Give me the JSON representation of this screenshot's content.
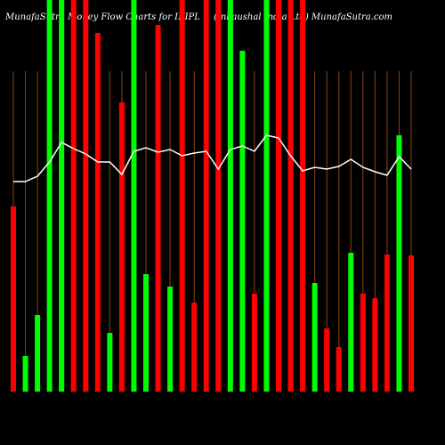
{
  "chart_data": {
    "type": "bar",
    "title": "MunafaSutra Money Flow Charts for IKIPL",
    "subtitle": "(Inkaushal India Ltd) MunafaSutra.com",
    "ylim": [
      0,
      440
    ],
    "values": [
      208,
      40,
      86,
      440,
      440,
      440,
      440,
      403,
      66,
      325,
      440,
      132,
      412,
      118,
      440,
      100,
      440,
      440,
      440,
      383,
      110,
      440,
      440,
      440,
      440,
      122,
      71,
      50,
      156,
      110,
      105,
      154,
      288,
      153
    ],
    "colors": [
      "#ff0000",
      "#00ff00",
      "#00ff00",
      "#00ff00",
      "#00ff00",
      "#ff0000",
      "#ff0000",
      "#ff0000",
      "#00ff00",
      "#ff0000",
      "#00ff00",
      "#00ff00",
      "#ff0000",
      "#00ff00",
      "#ff0000",
      "#ff0000",
      "#ff0000",
      "#ff0000",
      "#00ff00",
      "#00ff00",
      "#ff0000",
      "#00ff00",
      "#ff0000",
      "#ff0000",
      "#ff0000",
      "#00ff00",
      "#ff0000",
      "#ff0000",
      "#00ff00",
      "#ff0000",
      "#ff0000",
      "#ff0000",
      "#00ff00",
      "#ff0000"
    ],
    "line": {
      "color": "#ffffff",
      "values": [
        236,
        236,
        242,
        258,
        280,
        273,
        267,
        258,
        258,
        244,
        270,
        274,
        269,
        272,
        265,
        268,
        270,
        250,
        272,
        276,
        270,
        288,
        285,
        265,
        248,
        252,
        250,
        253,
        261,
        252,
        247,
        243,
        264,
        250
      ]
    },
    "gridline_color": "#8b4513"
  }
}
